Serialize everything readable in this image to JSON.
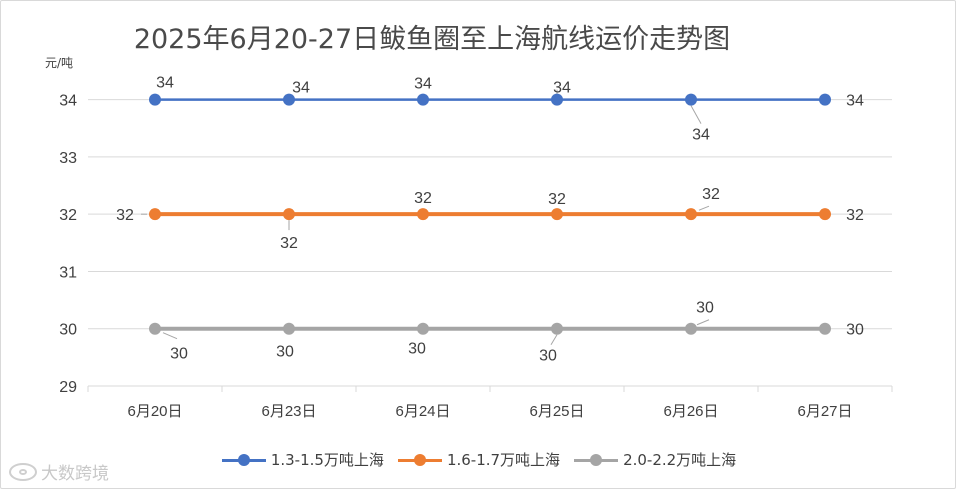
{
  "chart_data": {
    "type": "line",
    "title": "2025年6月20-27日鲅鱼圈至上海航线运价走势图",
    "unit_label": "元/吨",
    "xlabel": "",
    "ylabel": "",
    "categories": [
      "6月20日",
      "6月23日",
      "6月24日",
      "6月25日",
      "6月26日",
      "6月27日"
    ],
    "ylim": [
      29,
      34.5
    ],
    "yticks": [
      29,
      30,
      31,
      32,
      33,
      34
    ],
    "grid": true,
    "legend_position": "bottom",
    "series": [
      {
        "name": "1.3-1.5万吨上海",
        "color": "#4472c4",
        "values": [
          34,
          34,
          34,
          34,
          34,
          34
        ]
      },
      {
        "name": "1.6-1.7万吨上海",
        "color": "#ed7d31",
        "values": [
          32,
          32,
          32,
          32,
          32,
          32
        ]
      },
      {
        "name": "2.0-2.2万吨上海",
        "color": "#a5a5a5",
        "values": [
          30,
          30,
          30,
          30,
          30,
          30
        ]
      }
    ]
  },
  "watermark": {
    "icon": "eye-logo-icon",
    "text": "大数跨境"
  }
}
